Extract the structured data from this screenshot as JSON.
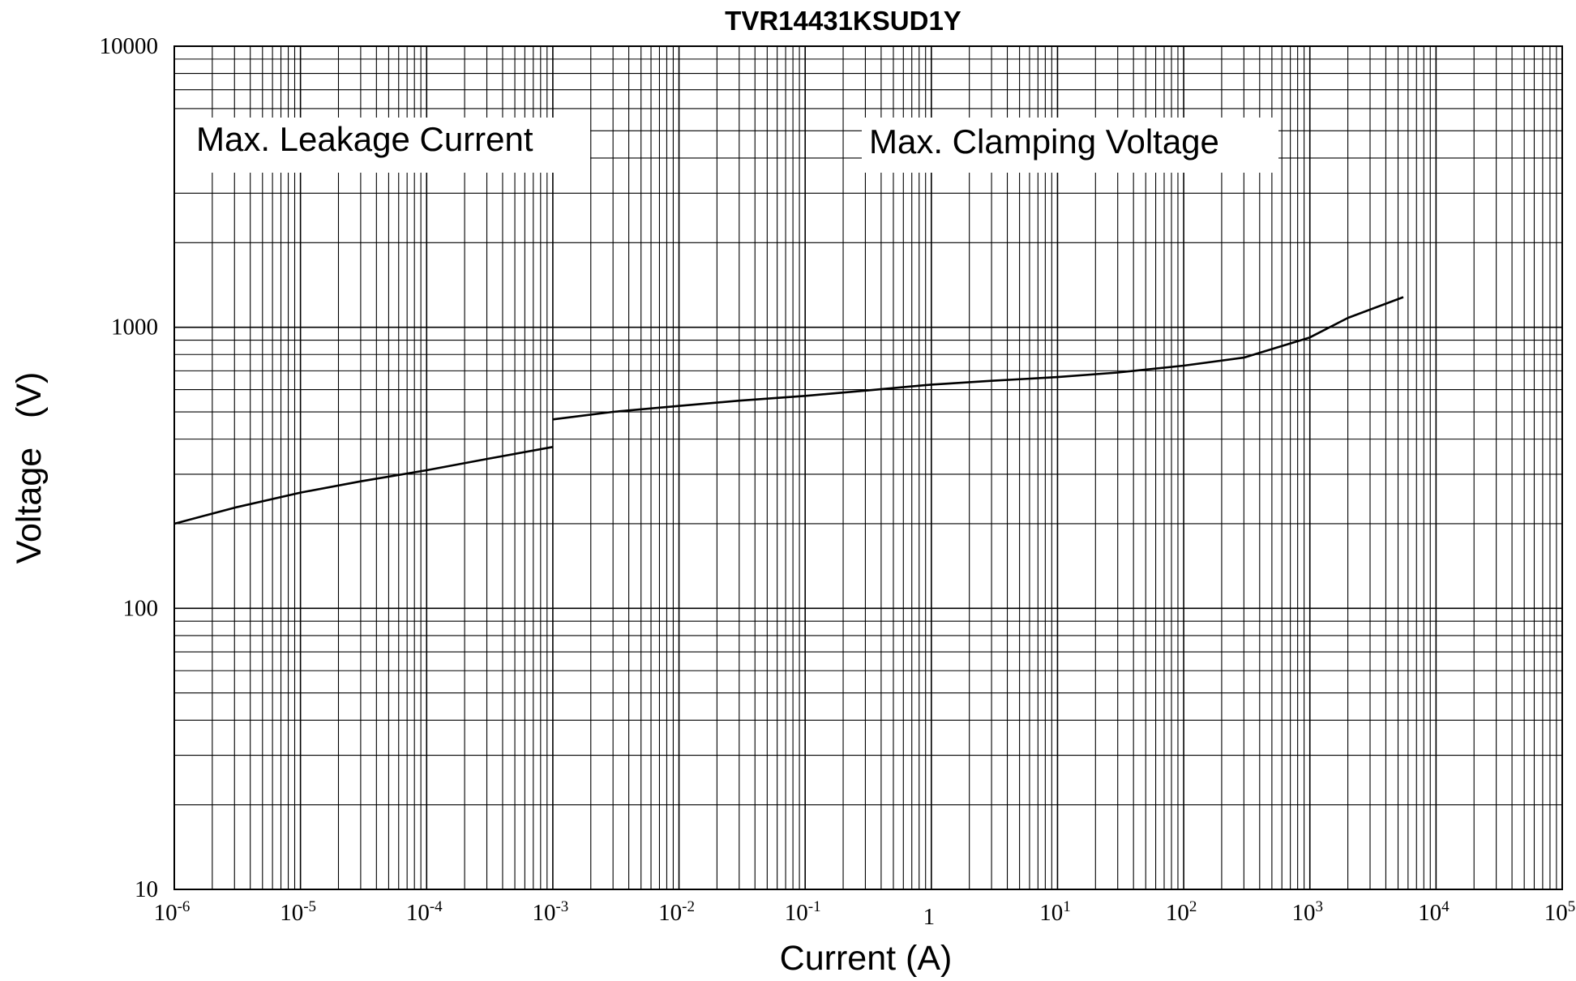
{
  "chart_data": {
    "type": "line",
    "title": "TVR14431KSUD1Y",
    "xlabel": "Current (A)",
    "ylabel": "Voltage   (V)",
    "xscale": "log",
    "yscale": "log",
    "xlim": [
      1e-06,
      100000
    ],
    "ylim": [
      10,
      10000
    ],
    "grid": true,
    "x_ticks": [
      {
        "base": "10",
        "exp": "-6"
      },
      {
        "base": "10",
        "exp": "-5"
      },
      {
        "base": "10",
        "exp": "-4"
      },
      {
        "base": "10",
        "exp": "-3"
      },
      {
        "base": "10",
        "exp": "-2"
      },
      {
        "base": "10",
        "exp": "-1"
      },
      {
        "base": "1",
        "exp": ""
      },
      {
        "base": "10",
        "exp": "1"
      },
      {
        "base": "10",
        "exp": "2"
      },
      {
        "base": "10",
        "exp": "3"
      },
      {
        "base": "10",
        "exp": "4"
      },
      {
        "base": "10",
        "exp": "5"
      }
    ],
    "y_ticks": [
      "10",
      "100",
      "1000",
      "10000"
    ],
    "annotations": [
      "Max. Leakage Current",
      "Max.  Clamping  Voltage"
    ],
    "series": [
      {
        "x": [
          1e-06,
          3e-06,
          1e-05,
          3e-05,
          0.0001,
          0.0003,
          0.001
        ],
        "y": [
          200,
          228,
          258,
          283,
          310,
          340,
          375
        ]
      },
      {
        "x": [
          0.001,
          0.003,
          0.01,
          0.03,
          0.1,
          0.3,
          1,
          3,
          10,
          30,
          100,
          300,
          1000,
          2000,
          5500
        ],
        "y": [
          470,
          500,
          525,
          548,
          570,
          595,
          625,
          645,
          665,
          690,
          730,
          780,
          920,
          1080,
          1280
        ]
      }
    ]
  }
}
